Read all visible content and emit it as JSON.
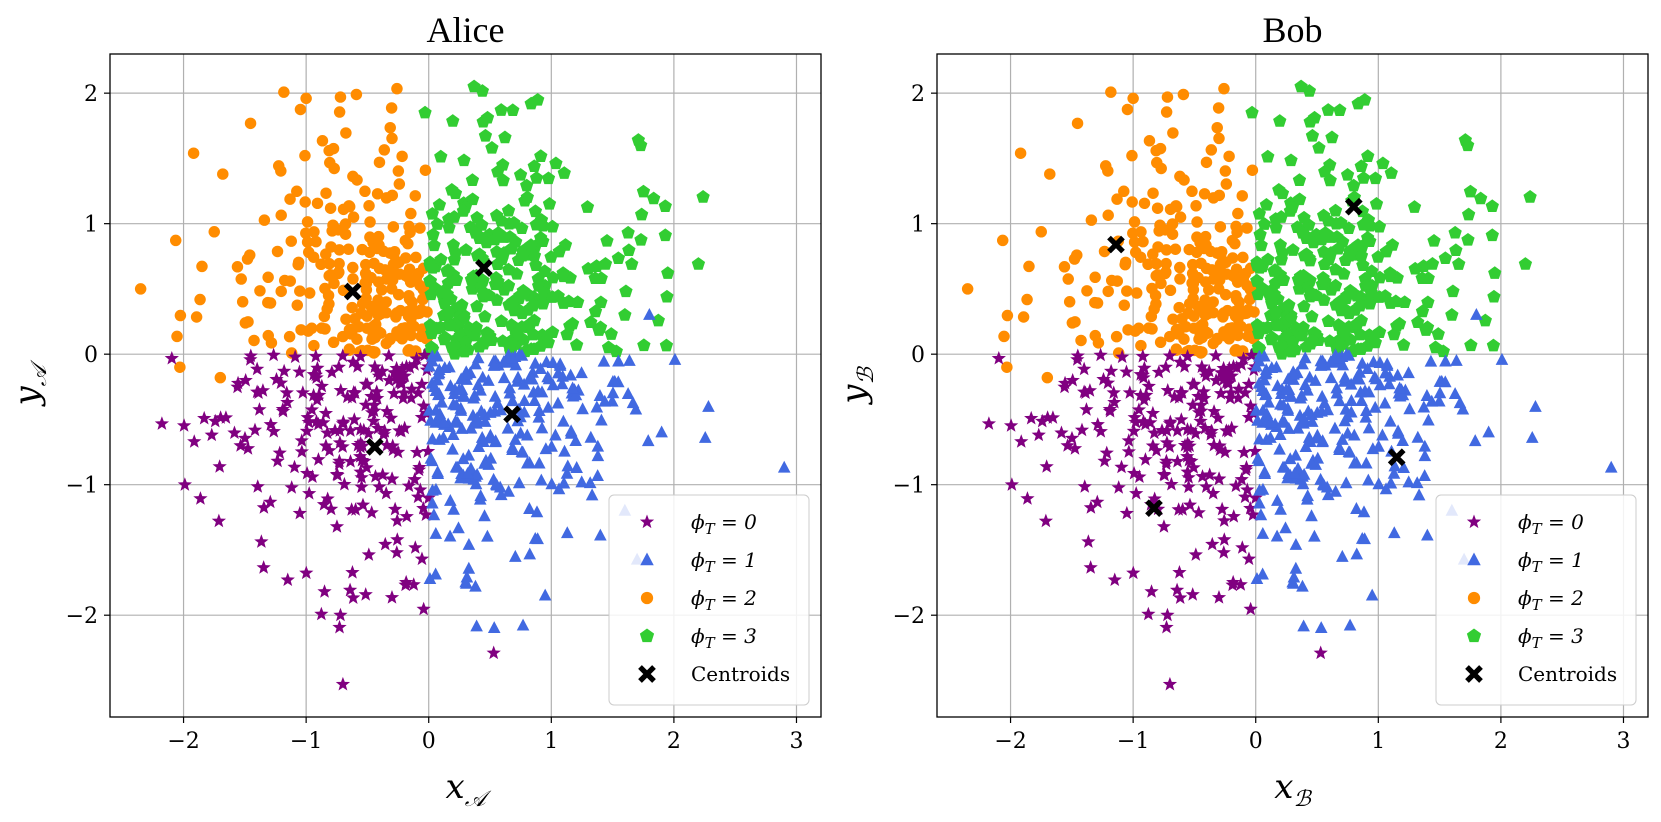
{
  "chart_data": [
    {
      "type": "scatter",
      "title": "Alice",
      "xlabel": "x_𝒜",
      "ylabel": "y_𝒜",
      "xlim": [
        -2.6,
        3.2
      ],
      "ylim": [
        -2.78,
        2.3
      ],
      "xticks": [
        -2,
        -1,
        0,
        1,
        2,
        3
      ],
      "yticks": [
        -2,
        -1,
        0,
        1,
        2
      ],
      "xtick_labels": [
        "−2",
        "−1",
        "0",
        "1",
        "2",
        "3"
      ],
      "ytick_labels": [
        "−2",
        "−1",
        "0",
        "1",
        "2"
      ],
      "grid": true,
      "legend_position": "lower-right",
      "legend": [
        "ϕ_T = 0",
        "ϕ_T = 1",
        "ϕ_T = 2",
        "ϕ_T = 3",
        "Centroids"
      ],
      "centroids": [
        [
          -0.62,
          0.48
        ],
        [
          0.45,
          0.66
        ],
        [
          -0.44,
          -0.71
        ],
        [
          0.68,
          -0.46
        ]
      ],
      "cluster_extremes": {
        "cluster_0": [
          [
            -0.7,
            -2.53
          ],
          [
            -0.72,
            -2.0
          ],
          [
            0.53,
            -2.29
          ],
          [
            -1.77,
            -0.62
          ],
          [
            -1.15,
            -1.73
          ],
          [
            -0.85,
            -1.82
          ]
        ],
        "cluster_1": [
          [
            2.9,
            -0.87
          ],
          [
            0.95,
            -1.85
          ],
          [
            1.8,
            0.3
          ],
          [
            1.9,
            -0.6
          ],
          [
            1.6,
            -1.2
          ],
          [
            1.4,
            -1.39
          ]
        ],
        "cluster_2": [
          [
            -2.35,
            0.5
          ],
          [
            -2.03,
            -0.1
          ],
          [
            -0.59,
            1.99
          ],
          [
            -1.0,
            1.96
          ],
          [
            -0.72,
            1.97
          ],
          [
            -1.68,
            1.38
          ],
          [
            -1.7,
            -0.18
          ]
        ],
        "cluster_3": [
          [
            0.37,
            2.05
          ],
          [
            2.2,
            0.69
          ],
          [
            1.71,
            1.64
          ],
          [
            1.93,
            0.91
          ],
          [
            1.95,
            0.62
          ],
          [
            -0.03,
            1.85
          ],
          [
            1.6,
            0.3
          ]
        ]
      }
    },
    {
      "type": "scatter",
      "title": "Bob",
      "xlabel": "x_ℬ",
      "ylabel": "y_ℬ",
      "xlim": [
        -2.6,
        3.2
      ],
      "ylim": [
        -2.78,
        2.3
      ],
      "xticks": [
        -2,
        -1,
        0,
        1,
        2,
        3
      ],
      "yticks": [
        -2,
        -1,
        0,
        1,
        2
      ],
      "xtick_labels": [
        "−2",
        "−1",
        "0",
        "1",
        "2",
        "3"
      ],
      "ytick_labels": [
        "−2",
        "−1",
        "0",
        "1",
        "2"
      ],
      "grid": true,
      "legend_position": "lower-right",
      "legend": [
        "ϕ_T = 0",
        "ϕ_T = 1",
        "ϕ_T = 2",
        "ϕ_T = 3",
        "Centroids"
      ],
      "centroids": [
        [
          -1.14,
          0.84
        ],
        [
          0.8,
          1.13
        ],
        [
          -0.83,
          -1.18
        ],
        [
          1.15,
          -0.79
        ]
      ],
      "cluster_extremes": {
        "cluster_0": [
          [
            -0.7,
            -2.53
          ],
          [
            -0.72,
            -2.0
          ],
          [
            0.53,
            -2.29
          ],
          [
            -1.77,
            -0.62
          ],
          [
            -1.15,
            -1.73
          ],
          [
            -0.85,
            -1.82
          ]
        ],
        "cluster_1": [
          [
            2.9,
            -0.87
          ],
          [
            0.95,
            -1.85
          ],
          [
            1.8,
            0.3
          ],
          [
            1.9,
            -0.6
          ],
          [
            1.6,
            -1.2
          ],
          [
            1.4,
            -1.39
          ]
        ],
        "cluster_2": [
          [
            -2.35,
            0.5
          ],
          [
            -2.03,
            -0.1
          ],
          [
            -0.59,
            1.99
          ],
          [
            -1.0,
            1.96
          ],
          [
            -0.72,
            1.97
          ],
          [
            -1.68,
            1.38
          ],
          [
            -1.7,
            -0.18
          ]
        ],
        "cluster_3": [
          [
            0.37,
            2.05
          ],
          [
            2.2,
            0.69
          ],
          [
            1.71,
            1.64
          ],
          [
            1.93,
            0.91
          ],
          [
            1.95,
            0.62
          ],
          [
            -0.03,
            1.85
          ],
          [
            1.6,
            0.3
          ]
        ]
      }
    }
  ],
  "colors": {
    "cluster_0": "#800080",
    "cluster_1": "#4169e1",
    "cluster_2": "#ff8c00",
    "cluster_3": "#32cd32",
    "centroid": "#000000",
    "grid": "#b0b0b0"
  },
  "marker_shapes": {
    "cluster_0": "star",
    "cluster_1": "triangle",
    "cluster_2": "circle",
    "cluster_3": "pentagon",
    "centroid": "x"
  }
}
